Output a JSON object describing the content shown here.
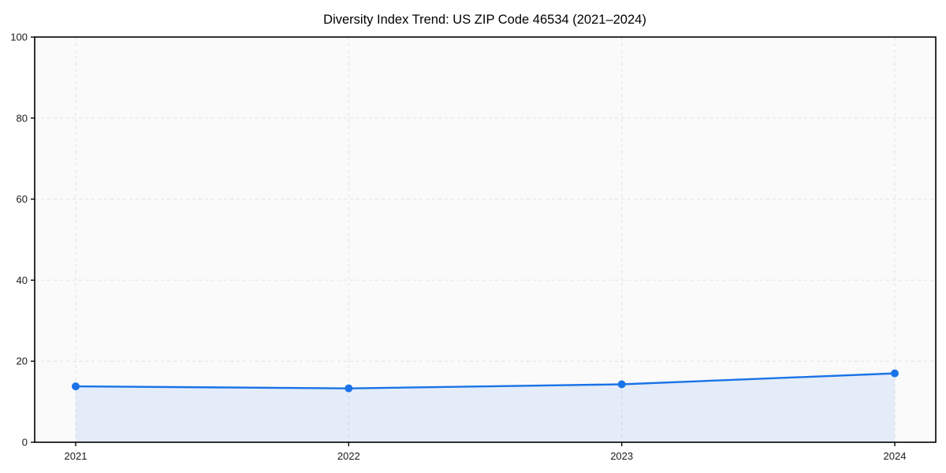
{
  "chart_data": {
    "type": "area",
    "title": "Diversity Index Trend: US ZIP Code 46534 (2021–2024)",
    "x": [
      "2021",
      "2022",
      "2023",
      "2024"
    ],
    "series": [
      {
        "name": "Diversity Index",
        "values": [
          13.8,
          13.3,
          14.3,
          17.0
        ]
      }
    ],
    "xlabel": "",
    "ylabel": "",
    "ylim": [
      0,
      100
    ],
    "yticks": [
      0,
      20,
      40,
      60,
      80,
      100
    ],
    "grid": "dashed-both-axes",
    "legend": "none",
    "colors": {
      "line": "#1a73e8",
      "fill": "rgba(26,115,232,0.10)",
      "grid": "#e2e2e2",
      "axis": "#000000",
      "plot_bg": "#fafafa",
      "fig_bg": "#ffffff",
      "tick_label": "#1a1a1a",
      "title": "#000000"
    }
  }
}
